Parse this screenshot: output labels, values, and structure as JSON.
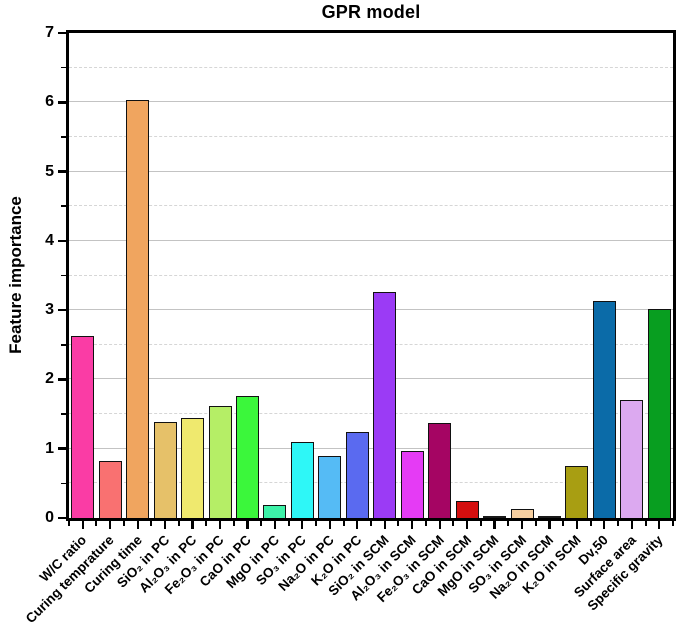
{
  "figure": {
    "title": "GPR model",
    "y_axis_title": "Feature importance"
  },
  "chart_data": {
    "type": "bar",
    "title": "GPR model",
    "xlabel": "",
    "ylabel": "Feature importance",
    "ylim": [
      0,
      7
    ],
    "ytick_labels": [
      "0",
      "1",
      "2",
      "3",
      "4",
      "5",
      "6",
      "7"
    ],
    "ytick_interval": 1,
    "grid": "solid light-gray lines at integers, dashed lighter lines at half-integers",
    "legend_position": "none",
    "categories": [
      "W/C ratio",
      "Curing temprature",
      "Curing time",
      "SiO₂ in PC",
      "Al₂O₃ in PC",
      "Fe₂O₃ in PC",
      "CaO in PC",
      "MgO in PC",
      "SO₃ in PC",
      "Na₂O in PC",
      "K₂O in PC",
      "SiO₂ in SCM",
      "Al₂O₃ in SCM",
      "Fe₂O₃ in SCM",
      "CaO in SCM",
      "MgO in SCM",
      "SO₃ in SCM",
      "Na₂O in SCM",
      "K₂O in SCM",
      "Dv,50",
      "Surface area",
      "Specific gravity"
    ],
    "values": [
      2.62,
      0.83,
      6.04,
      1.39,
      1.45,
      1.61,
      1.76,
      0.19,
      1.1,
      0.9,
      1.24,
      3.26,
      0.97,
      1.37,
      0.25,
      0.01,
      0.13,
      0.02,
      0.75,
      3.13,
      1.71,
      3.01
    ],
    "bar_colors": [
      "#fa3ca5",
      "#f97171",
      "#f0a55f",
      "#e6c169",
      "#efe96e",
      "#b5ee66",
      "#3bf73b",
      "#3df2a8",
      "#2ef7f7",
      "#55bbf5",
      "#5a6af0",
      "#9b3bf5",
      "#e53bf5",
      "#a50563",
      "#d40f0f",
      "#1a1a1a",
      "#f7cfa0",
      "#1a1a1a",
      "#a89e12",
      "#0b6ba8",
      "#dca9f0",
      "#089e20"
    ],
    "bar_border_color": "#111111",
    "frame_color": "#000000",
    "background_color": "#ffffff"
  }
}
